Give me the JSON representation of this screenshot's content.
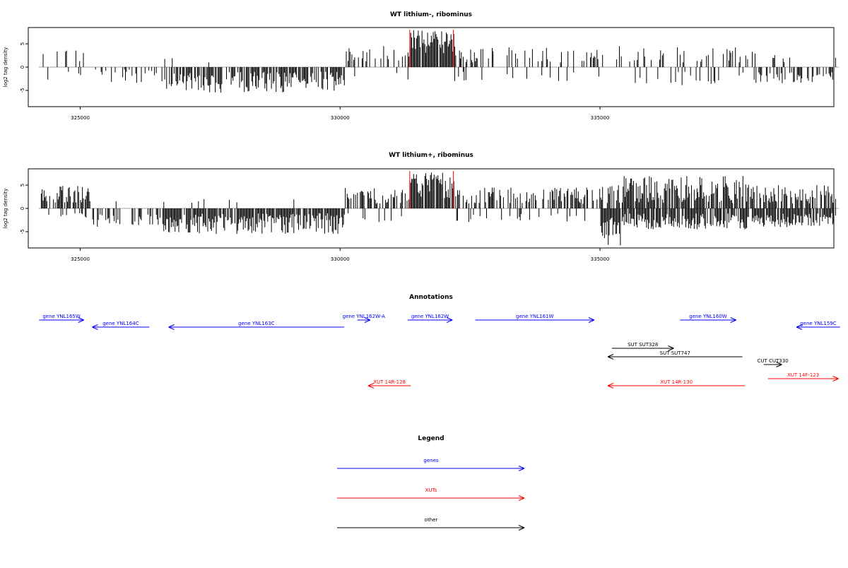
{
  "chart_data": [
    {
      "type": "bar",
      "title": "WT lithium-, ribominus",
      "xlabel": "",
      "ylabel": "log2 tag density",
      "x_ticks": [
        "325000",
        "330000",
        "335000"
      ],
      "y_ticks": [
        "-5",
        "0",
        "5"
      ],
      "xlim": [
        324000,
        339500
      ],
      "ylim": [
        -8.5,
        8.5
      ],
      "grid": false,
      "highlight_positions": [
        331340,
        332180
      ],
      "highlight_color": "#ff0000",
      "bar_color": "#000000",
      "note": "dense per-position stranded tag-density profile"
    },
    {
      "type": "bar",
      "title": "WT lithium+, ribominus",
      "xlabel": "",
      "ylabel": "log2 tag density",
      "x_ticks": [
        "325000",
        "330000",
        "335000"
      ],
      "y_ticks": [
        "-5",
        "0",
        "5"
      ],
      "xlim": [
        324000,
        339500
      ],
      "ylim": [
        -8.5,
        8.5
      ],
      "grid": false,
      "highlight_positions": [
        331340,
        332180
      ],
      "highlight_color": "#ff0000",
      "bar_color": "#000000"
    }
  ],
  "annotations": {
    "title": "Annotations",
    "features": [
      {
        "label": "gene YNL165W",
        "type": "gene",
        "strand": "+",
        "row": 0,
        "start": 324210,
        "end": 325070
      },
      {
        "label": "gene YNL164C",
        "type": "gene",
        "strand": "-",
        "row": 1,
        "start": 325230,
        "end": 326330
      },
      {
        "label": "gene YNL163C",
        "type": "gene",
        "strand": "-",
        "row": 1,
        "start": 326700,
        "end": 330080
      },
      {
        "label": "gene YNL162W-A",
        "type": "gene",
        "strand": "+",
        "row": 0,
        "start": 330330,
        "end": 330580
      },
      {
        "label": "gene YNL162W",
        "type": "gene",
        "strand": "+",
        "row": 0,
        "start": 331300,
        "end": 332160
      },
      {
        "label": "gene YNL161W",
        "type": "gene",
        "strand": "+",
        "row": 0,
        "start": 332600,
        "end": 334890
      },
      {
        "label": "gene YNL160W",
        "type": "gene",
        "strand": "+",
        "row": 0,
        "start": 336540,
        "end": 337620
      },
      {
        "label": "gene YNL159C",
        "type": "gene",
        "strand": "-",
        "row": 1,
        "start": 338780,
        "end": 339620
      },
      {
        "label": "SUT SUT328",
        "type": "other",
        "strand": "+",
        "row": 2,
        "start": 335230,
        "end": 336420
      },
      {
        "label": "SUT SUT747",
        "type": "other",
        "strand": "-",
        "row": 3,
        "start": 335150,
        "end": 337740
      },
      {
        "label": "CUT CUT330",
        "type": "other",
        "strand": "+",
        "row": 4,
        "start": 338150,
        "end": 338500
      },
      {
        "label": "XUT 14R-128",
        "type": "XUT",
        "strand": "-",
        "row": 6,
        "start": 330540,
        "end": 331360
      },
      {
        "label": "XUT 14R-130",
        "type": "XUT",
        "strand": "-",
        "row": 6,
        "start": 335150,
        "end": 337790
      },
      {
        "label": "XUT 14F-123",
        "type": "XUT",
        "strand": "+",
        "row": 5,
        "start": 338230,
        "end": 339590
      }
    ]
  },
  "legend": {
    "title": "Legend",
    "items": [
      {
        "label": "genes",
        "color": "#0000ff"
      },
      {
        "label": "XUTs",
        "color": "#ff0000"
      },
      {
        "label": "other",
        "color": "#000000"
      }
    ]
  },
  "colors": {
    "gene": "#0000ff",
    "XUT": "#ff0000",
    "other": "#000000"
  }
}
